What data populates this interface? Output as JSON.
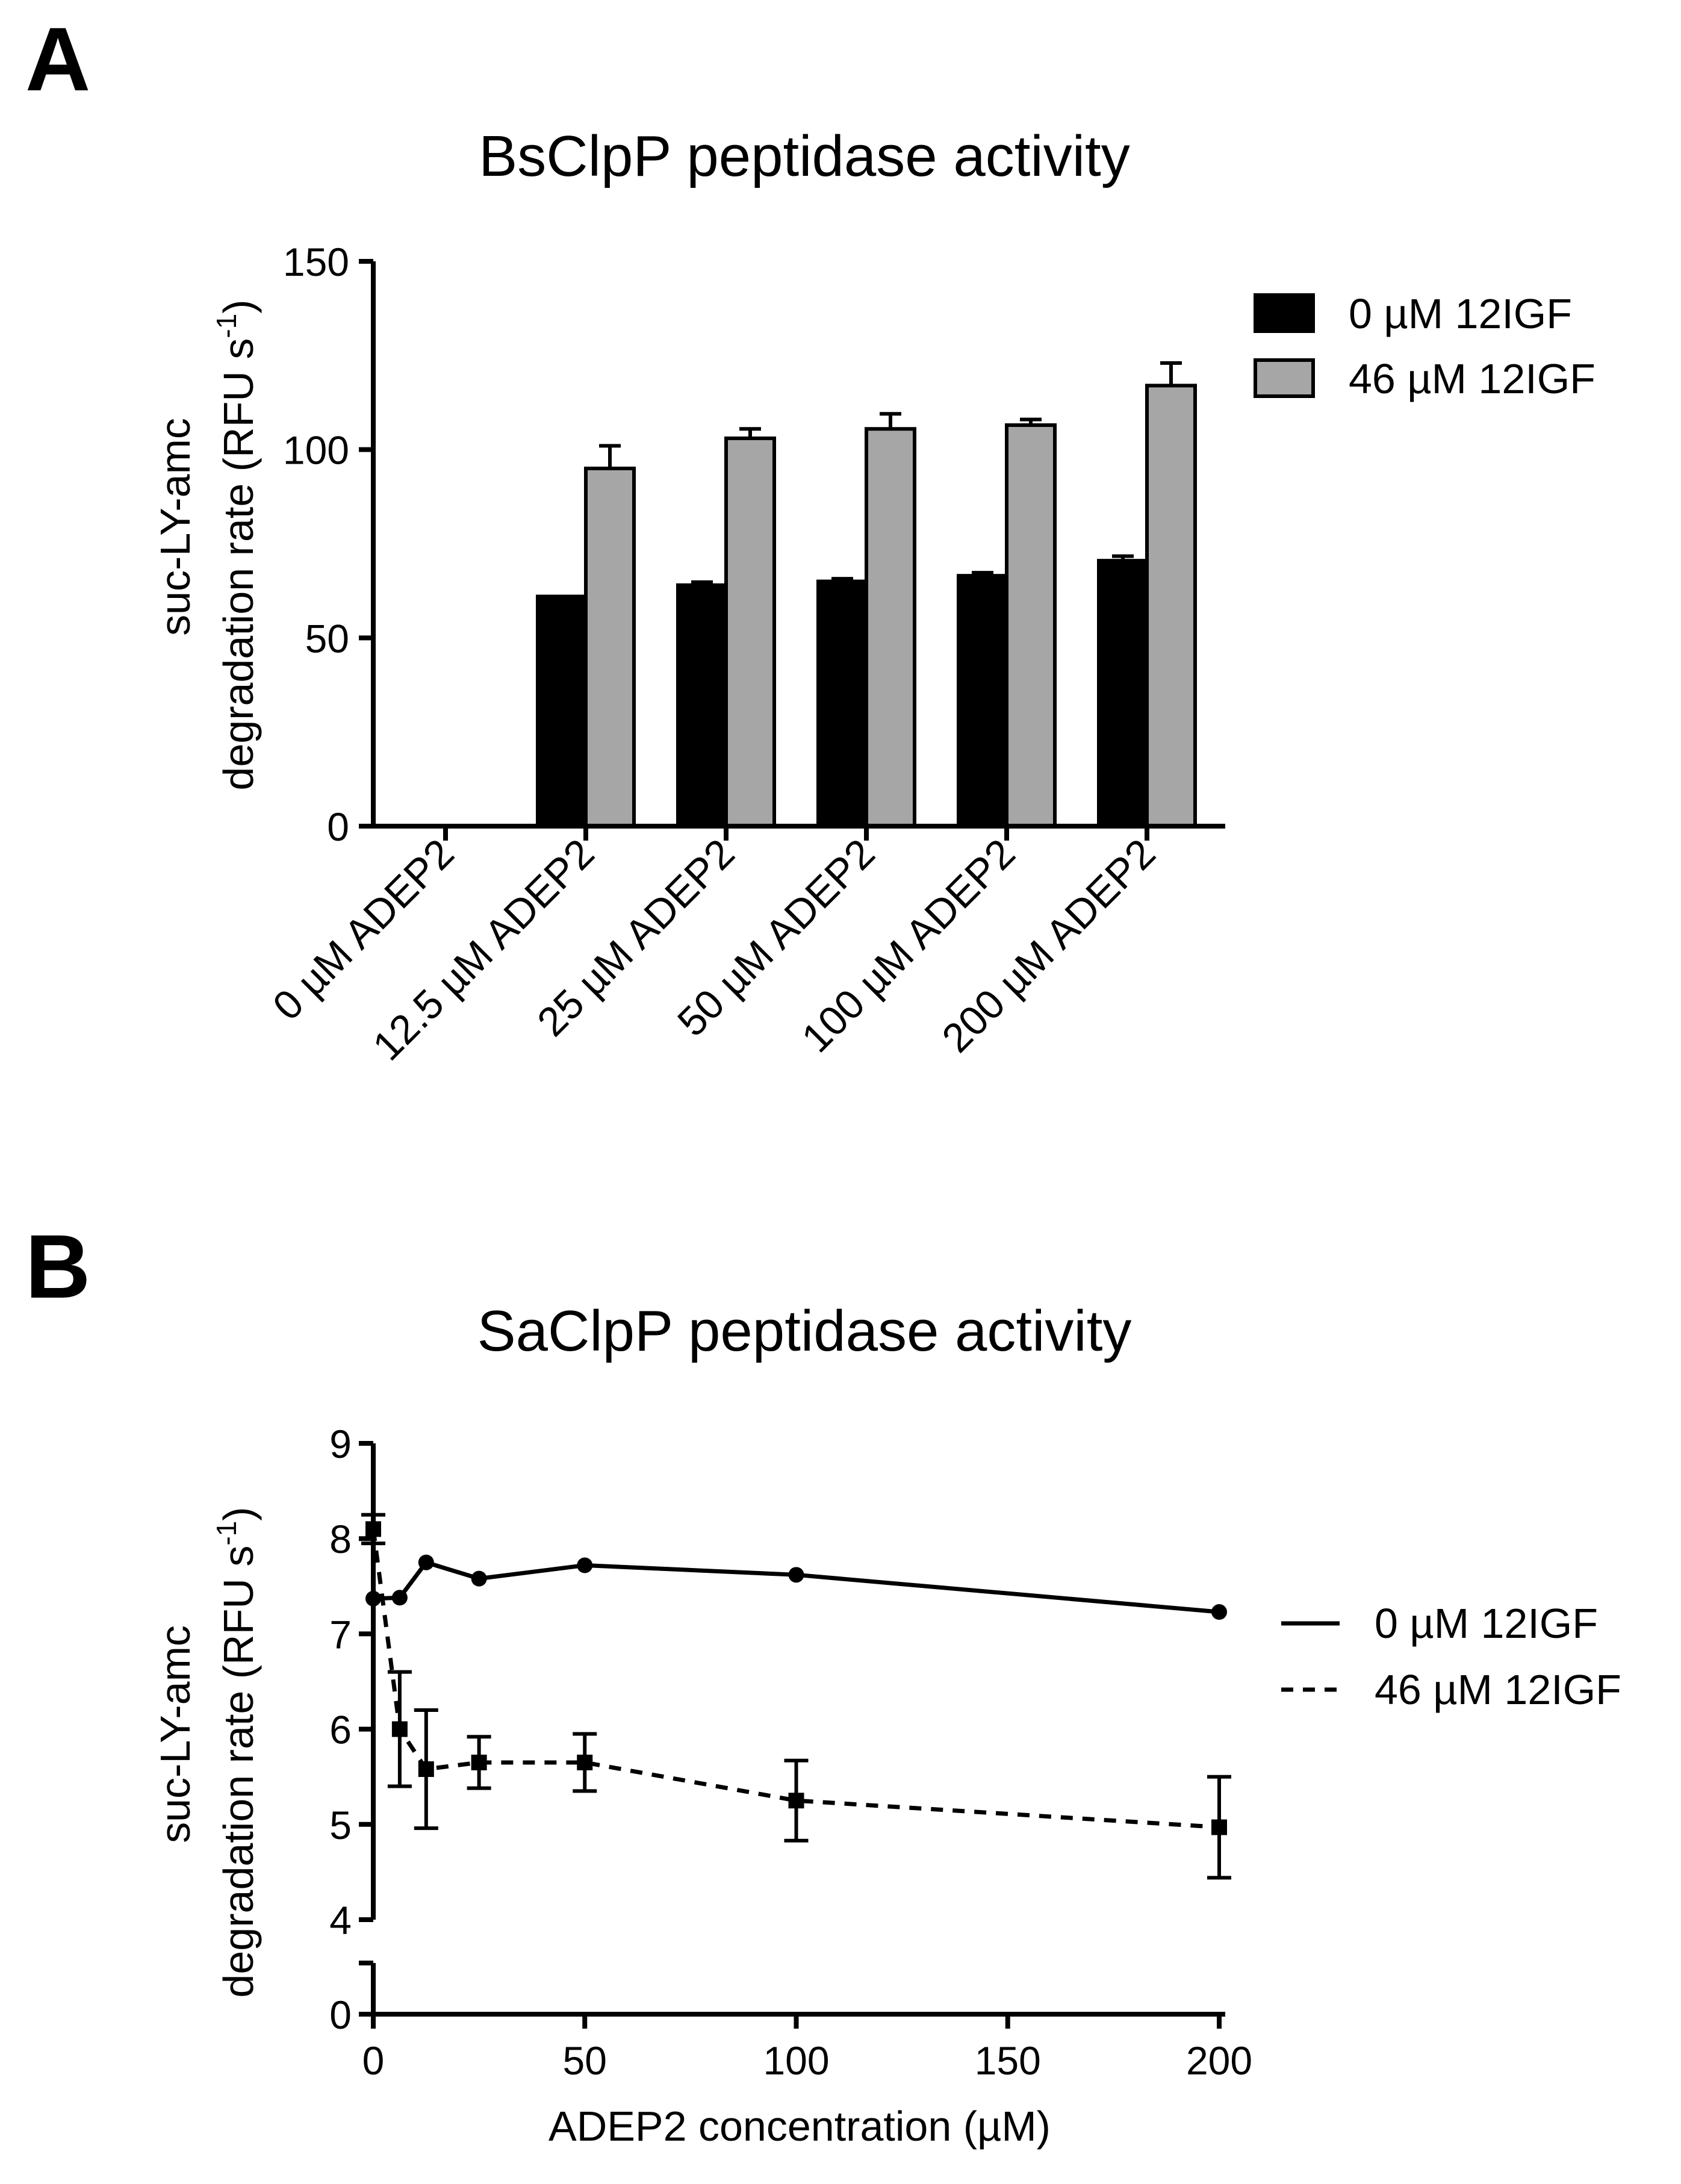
{
  "figure": {
    "panel_a_letter": "A",
    "panel_b_letter": "B"
  },
  "colors": {
    "bar_0uM": "#000000",
    "bar_46uM": "#a6a6a6",
    "axis": "#000000",
    "background": "#ffffff"
  },
  "chart_data": [
    {
      "panel": "A",
      "type": "bar",
      "title": "BsClpP peptidase activity",
      "ylabel_line1": "suc-LY-amc",
      "ylabel_line2": "degradation rate (RFU s",
      "ylabel_superscript": "-1",
      "ylabel_close": ")",
      "xlabel": "",
      "categories": [
        "0 µM ADEP2",
        "12.5 µM ADEP2",
        "25 µM ADEP2",
        "50 µM ADEP2",
        "100 µM ADEP2",
        "200 µM ADEP2"
      ],
      "ylim": [
        0,
        150
      ],
      "yticks": [
        "0",
        "50",
        "100",
        "150"
      ],
      "legend_position": "top-right",
      "series": [
        {
          "name": "0 µM 12IGF",
          "color": "#000000",
          "values": [
            0,
            61,
            64,
            65,
            66.5,
            70.5
          ],
          "errors": [
            0,
            0,
            0.8,
            0.7,
            0.8,
            1.2
          ]
        },
        {
          "name": "46 µM 12IGF",
          "color": "#a6a6a6",
          "values": [
            0,
            95,
            103,
            105.5,
            106.5,
            117
          ],
          "errors": [
            0,
            6,
            2.5,
            4,
            1.5,
            6
          ]
        }
      ]
    },
    {
      "panel": "B",
      "type": "line",
      "title": "SaClpP peptidase activity",
      "ylabel_line1": "suc-LY-amc",
      "ylabel_line2": "degradation rate (RFU s",
      "ylabel_superscript": "-1",
      "ylabel_close": ")",
      "xlabel": "ADEP2 concentration (µM)",
      "xlim": [
        0,
        200
      ],
      "xticks": [
        "0",
        "50",
        "100",
        "150",
        "200"
      ],
      "ylim_upper_segment": [
        4,
        9
      ],
      "ylim_lower_segment": [
        0,
        0.5
      ],
      "yticks": [
        "0",
        "4",
        "5",
        "6",
        "7",
        "8",
        "9"
      ],
      "axis_break": "y between 0 and 4",
      "legend_position": "right",
      "series": [
        {
          "name": "0 µM 12IGF",
          "style": "solid",
          "marker": "circle",
          "x": [
            0,
            6.25,
            12.5,
            25,
            50,
            100,
            200
          ],
          "y": [
            7.37,
            7.38,
            7.75,
            7.58,
            7.72,
            7.62,
            7.23
          ],
          "errors": [
            0,
            0,
            0,
            0,
            0,
            0,
            0
          ]
        },
        {
          "name": "46 µM 12IGF",
          "style": "dashed",
          "marker": "square",
          "x": [
            0,
            6.25,
            12.5,
            25,
            50,
            100,
            200
          ],
          "y": [
            8.1,
            6.0,
            5.58,
            5.65,
            5.65,
            5.25,
            4.97
          ],
          "errors": [
            0.15,
            0.6,
            0.62,
            0.27,
            0.3,
            0.42,
            0.53
          ]
        }
      ]
    }
  ]
}
